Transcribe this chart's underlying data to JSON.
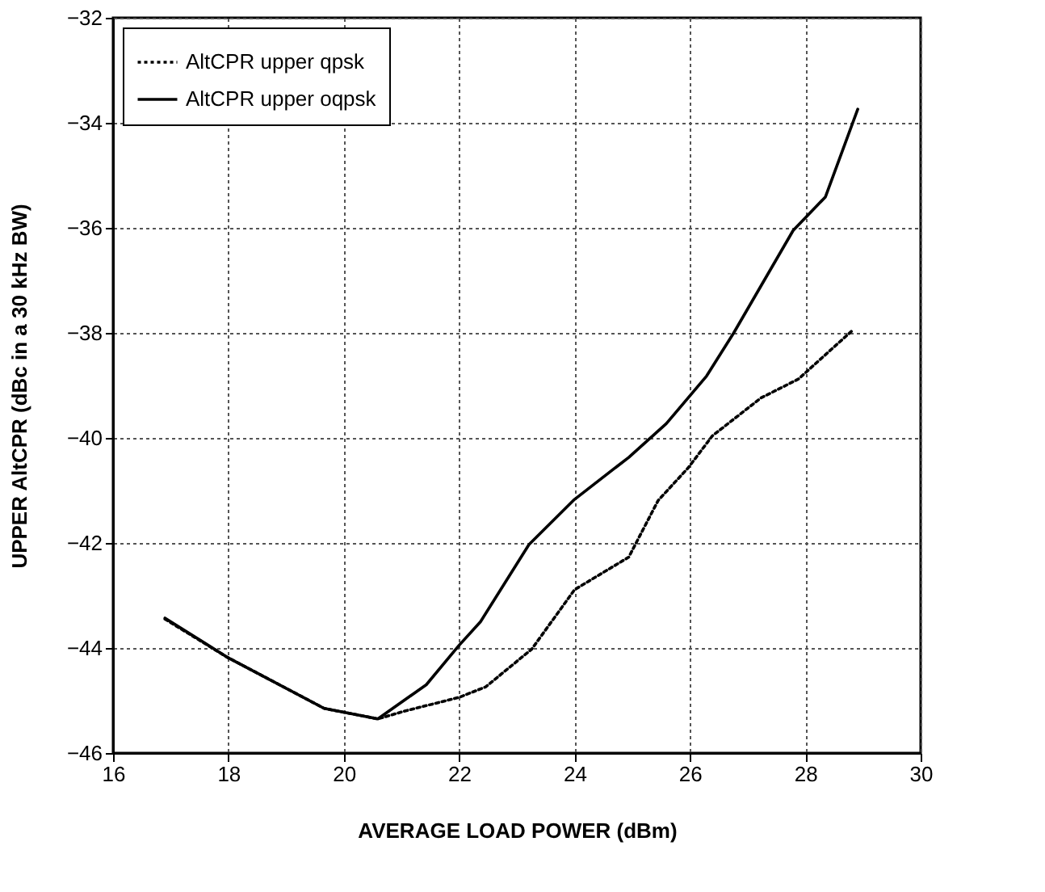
{
  "chart_data": {
    "type": "line",
    "xlabel": "AVERAGE LOAD POWER (dBm)",
    "ylabel": "UPPER AltCPR (dBc in a 30 kHz BW)",
    "xlim": [
      16,
      30
    ],
    "xticks": [
      16,
      18,
      20,
      22,
      24,
      26,
      28,
      30
    ],
    "ylim": [
      -46,
      -32
    ],
    "yticks": [
      -46,
      -44,
      -42,
      -40,
      -38,
      -36,
      -34,
      -32
    ],
    "grid": true,
    "legend": "top left",
    "marker": "none",
    "series": [
      {
        "name": "AltCPR upper qpsk",
        "color": "#000000",
        "line_style": "dotted",
        "x": [
          16.9,
          17.97,
          19.66,
          20.59,
          21.06,
          22.0,
          22.46,
          23.26,
          24.0,
          24.94,
          25.45,
          25.97,
          26.39,
          27.23,
          27.88,
          28.82
        ],
        "values": [
          -43.45,
          -44.17,
          -45.15,
          -45.35,
          -45.2,
          -44.94,
          -44.74,
          -44.02,
          -42.89,
          -42.27,
          -41.19,
          -40.57,
          -39.96,
          -39.24,
          -38.88,
          -37.95
        ]
      },
      {
        "name": "AltCPR upper oqpsk",
        "color": "#000000",
        "line_style": "solid",
        "x": [
          16.9,
          17.97,
          19.66,
          20.59,
          21.43,
          21.99,
          22.37,
          23.21,
          24.0,
          24.94,
          25.59,
          26.29,
          26.76,
          27.79,
          28.35,
          28.91
        ],
        "values": [
          -43.43,
          -44.17,
          -45.15,
          -45.35,
          -44.7,
          -43.96,
          -43.5,
          -42.03,
          -41.17,
          -40.37,
          -39.73,
          -38.82,
          -38.0,
          -36.05,
          -35.41,
          -33.74
        ]
      }
    ]
  }
}
